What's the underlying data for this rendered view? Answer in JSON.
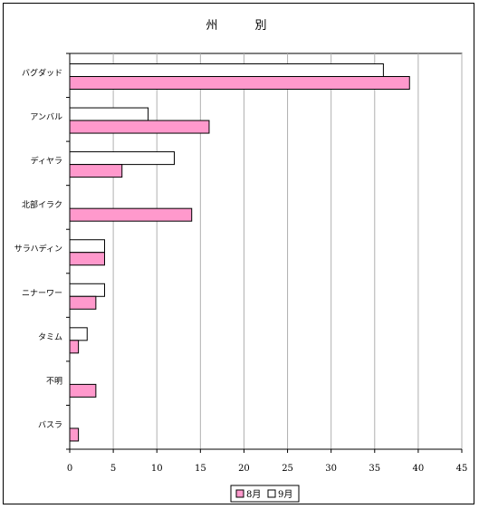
{
  "chart_data": {
    "type": "bar",
    "orientation": "horizontal",
    "title": "州　別",
    "categories": [
      "バグダッド",
      "アンバル",
      "ディヤラ",
      "北部イラク",
      "サラハディン",
      "ニナーワー",
      "タミム",
      "不明",
      "バスラ"
    ],
    "series": [
      {
        "name": "9月",
        "values": [
          36,
          9,
          12,
          0,
          4,
          4,
          2,
          0,
          0
        ],
        "color": "#ffffff"
      },
      {
        "name": "8月",
        "values": [
          39,
          16,
          6,
          14,
          4,
          3,
          1,
          3,
          1
        ],
        "color": "#ff99cc"
      }
    ],
    "xlim": [
      0,
      45
    ],
    "xticks": [
      0,
      5,
      10,
      15,
      20,
      25,
      30,
      35,
      40,
      45
    ],
    "grid": true,
    "legend": {
      "position": "bottom",
      "entries": [
        "8月",
        "9月"
      ]
    }
  }
}
